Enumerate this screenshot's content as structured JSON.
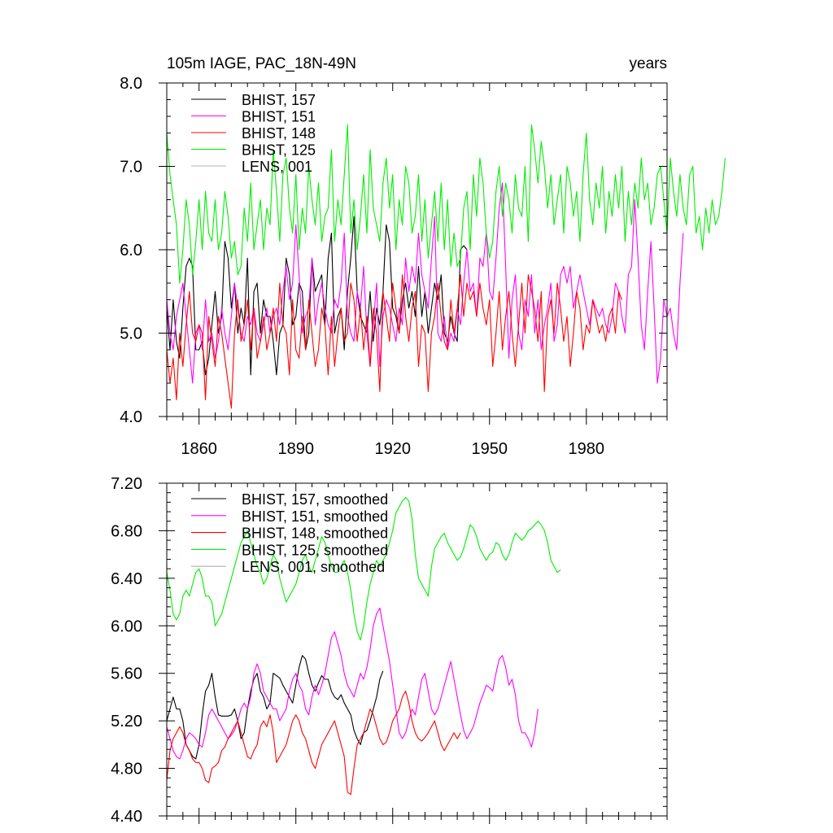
{
  "chart_data": [
    {
      "type": "line",
      "title_left": "105m IAGE, PAC_18N-49N",
      "title_right": "years",
      "xlim": [
        1850,
        2005
      ],
      "ylim": [
        4.0,
        8.0
      ],
      "xticks": [
        1860,
        1890,
        1920,
        1950,
        1980
      ],
      "xtick_labels": [
        "1860",
        "1890",
        "1920",
        "1950",
        "1980"
      ],
      "yticks": [
        4.0,
        5.0,
        6.0,
        7.0,
        8.0
      ],
      "ytick_labels": [
        "4.0",
        "5.0",
        "6.0",
        "7.0",
        "8.0"
      ],
      "legend_position": "top-left",
      "series": [
        {
          "name": "BHIST, 157",
          "color": "#000000",
          "x0": 1850,
          "values": [
            5.3,
            4.8,
            5.4,
            4.9,
            4.7,
            5.3,
            5.8,
            5.9,
            5.8,
            4.8,
            4.8,
            4.9,
            4.5,
            4.7,
            5.1,
            5.5,
            5.0,
            5.2,
            6.1,
            5.9,
            5.3,
            5.6,
            5.0,
            5.3,
            5.1,
            5.9,
            4.5,
            5.5,
            5.6,
            5.0,
            5.4,
            5.2,
            5.2,
            4.9,
            4.5,
            5.0,
            5.1,
            5.9,
            5.7,
            5.1,
            5.2,
            5.6,
            5.5,
            4.8,
            5.0,
            5.9,
            5.5,
            5.6,
            5.7,
            5.1,
            5.9,
            6.2,
            5.0,
            5.2,
            5.3,
            4.8,
            5.5,
            5.9,
            6.4,
            5.5,
            5.2,
            5.1,
            5.0,
            5.5,
            4.9,
            5.3,
            5.1,
            5.5,
            6.3,
            6.1,
            5.3,
            5.2,
            5.0,
            5.4,
            5.6,
            5.3,
            5.5,
            5.2,
            5.8,
            5.2,
            5.5,
            5.0,
            5.3,
            5.6,
            5.4,
            5.7,
            5.0,
            4.9,
            5.2,
            5.0,
            4.9,
            6.0,
            6.05,
            6.0
          ]
        },
        {
          "name": "BHIST, 151",
          "color": "#ff00ff",
          "x0": 1850,
          "values": [
            5.4,
            5.0,
            4.8,
            5.2,
            5.4,
            5.6,
            5.2,
            4.8,
            4.4,
            5.0,
            5.1,
            4.8,
            5.4,
            4.9,
            5.0,
            4.7,
            4.9,
            5.3,
            5.0,
            4.8,
            5.2,
            5.6,
            5.3,
            5.0,
            4.9,
            5.2,
            5.1,
            5.3,
            5.0,
            4.9,
            5.1,
            5.3,
            5.0,
            5.2,
            5.3,
            5.1,
            5.5,
            5.8,
            5.4,
            5.6,
            6.3,
            5.7,
            5.0,
            5.2,
            5.3,
            5.9,
            5.1,
            5.4,
            5.6,
            5.3,
            5.1,
            5.0,
            5.4,
            5.3,
            5.6,
            6.2,
            5.2,
            5.0,
            4.9,
            5.5,
            5.3,
            5.8,
            5.0,
            4.6,
            5.1,
            5.6,
            4.6,
            5.2,
            5.4,
            5.3,
            5.1,
            4.9,
            5.3,
            5.1,
            5.9,
            5.5,
            5.8,
            5.6,
            6.2,
            5.7,
            5.5,
            5.3,
            5.9,
            6.4,
            5.0,
            4.9,
            5.2,
            4.8,
            5.0,
            4.9,
            5.3,
            5.1,
            5.6,
            6.0,
            5.5,
            5.6,
            5.2,
            5.9,
            5.8,
            6.2,
            5.5,
            5.4,
            5.9,
            6.5,
            6.8,
            5.8,
            4.7,
            5.4,
            5.7,
            5.0,
            4.8,
            5.4,
            5.2,
            5.7,
            5.0,
            5.4,
            4.8,
            5.1,
            5.3,
            5.6,
            4.9,
            5.1,
            5.7,
            5.8,
            5.6,
            5.8,
            5.3,
            5.5,
            5.7,
            5.5,
            5.3,
            5.1,
            5.4,
            5.3,
            5.2,
            5.3,
            5.1,
            5.0,
            5.2,
            5.6,
            5.5,
            5.2,
            5.0,
            5.7,
            5.8,
            6.6,
            5.9,
            5.1,
            4.8,
            5.5,
            6.1,
            5.3,
            4.4,
            4.7,
            5.4,
            5.2,
            5.3,
            5.0,
            4.8,
            5.6,
            6.2
          ]
        },
        {
          "name": "BHIST, 148",
          "color": "#ff0000",
          "x0": 1850,
          "values": [
            4.8,
            4.4,
            4.7,
            4.2,
            5.0,
            4.6,
            5.1,
            5.5,
            5.0,
            4.9,
            5.1,
            5.0,
            4.2,
            5.2,
            4.9,
            4.6,
            5.2,
            5.0,
            4.7,
            4.4,
            4.1,
            5.0,
            5.4,
            4.9,
            5.1,
            5.4,
            4.8,
            5.3,
            4.7,
            4.9,
            5.2,
            4.8,
            5.0,
            5.3,
            4.9,
            5.6,
            5.1,
            5.0,
            4.5,
            5.4,
            4.8,
            4.7,
            5.2,
            4.8,
            5.4,
            5.0,
            4.6,
            4.8,
            5.3,
            5.1,
            4.5,
            5.2,
            4.6,
            5.0,
            5.3,
            4.9,
            5.0,
            5.6,
            5.4,
            4.9,
            5.3,
            4.8,
            5.2,
            4.6,
            5.3,
            5.0,
            4.3,
            5.5,
            5.2,
            4.9,
            5.6,
            5.3,
            5.0,
            5.7,
            5.2,
            4.9,
            5.3,
            5.5,
            4.6,
            5.1,
            5.0,
            4.3,
            5.0,
            5.2,
            5.6,
            5.2,
            4.9,
            4.8,
            5.4,
            5.0,
            5.3,
            5.7,
            5.2,
            5.6,
            5.4,
            5.5,
            5.2,
            5.6,
            5.3,
            5.1,
            5.4,
            4.6,
            5.0,
            5.5,
            4.8,
            5.2,
            5.5,
            5.0,
            4.6,
            5.1,
            5.6,
            5.0,
            5.7,
            5.5,
            5.3,
            4.9,
            5.5,
            4.3,
            5.2,
            5.4,
            5.0,
            5.6,
            5.3,
            4.9,
            5.2,
            4.6,
            5.0,
            5.5,
            5.3,
            4.8,
            5.1,
            5.0,
            5.4,
            5.2,
            5.0,
            5.1,
            4.9,
            5.2,
            5.3,
            5.0,
            5.5,
            5.4
          ]
        },
        {
          "name": "BHIST, 125",
          "color": "#00ee00",
          "x0": 1850,
          "values": [
            7.4,
            6.9,
            6.6,
            6.3,
            5.6,
            6.0,
            6.6,
            6.3,
            5.7,
            6.1,
            6.6,
            6.0,
            6.7,
            6.2,
            6.1,
            6.6,
            6.0,
            6.2,
            6.7,
            6.4,
            5.9,
            6.1,
            5.7,
            5.8,
            6.5,
            6.1,
            6.8,
            6.0,
            6.3,
            6.6,
            6.0,
            6.5,
            6.3,
            7.2,
            6.7,
            6.1,
            6.9,
            7.1,
            6.5,
            6.2,
            6.9,
            6.0,
            6.5,
            6.2,
            7.0,
            6.6,
            6.3,
            6.8,
            6.1,
            6.4,
            6.5,
            7.2,
            6.1,
            6.6,
            6.3,
            6.9,
            7.5,
            6.2,
            6.6,
            6.0,
            6.4,
            6.9,
            6.2,
            7.2,
            6.5,
            6.3,
            6.1,
            6.8,
            7.1,
            6.5,
            6.9,
            6.0,
            6.6,
            6.3,
            7.0,
            6.8,
            6.2,
            6.4,
            6.9,
            6.1,
            6.6,
            5.9,
            6.3,
            6.7,
            6.1,
            6.8,
            6.0,
            6.6,
            5.8,
            6.2,
            5.8,
            5.9,
            6.5,
            6.7,
            6.0,
            6.9,
            6.4,
            7.1,
            6.8,
            6.2,
            5.9,
            6.1,
            6.7,
            7.0,
            6.4,
            6.8,
            6.6,
            6.2,
            6.9,
            6.5,
            6.4,
            7.0,
            6.1,
            7.5,
            7.2,
            6.8,
            7.3,
            7.0,
            6.5,
            6.9,
            6.3,
            6.6,
            6.9,
            6.2,
            7.0,
            6.8,
            6.4,
            6.7,
            6.1,
            6.9,
            7.4,
            6.6,
            6.3,
            6.8,
            6.5,
            7.0,
            6.2,
            6.7,
            6.4,
            6.9,
            6.5,
            7.0,
            6.1,
            6.7,
            6.3,
            6.8,
            6.5,
            7.1,
            6.6,
            6.8,
            6.3,
            6.5,
            6.9,
            7.0,
            6.6,
            6.2,
            7.1,
            6.7,
            6.4,
            6.9,
            6.5,
            6.3,
            6.9,
            7.0,
            6.2,
            6.4,
            6.0,
            6.5,
            6.2,
            6.6,
            6.3,
            6.4,
            6.7,
            7.1
          ]
        },
        {
          "name": "LENS, 001",
          "color": "#b0b0b0",
          "x0": 1850,
          "values": []
        }
      ]
    },
    {
      "type": "line",
      "xlim": [
        1850,
        2005
      ],
      "ylim": [
        4.4,
        7.2
      ],
      "xticks": [
        1860,
        1890,
        1920,
        1950,
        1980
      ],
      "yticks": [
        4.4,
        4.8,
        5.2,
        5.6,
        6.0,
        6.4,
        6.8,
        7.2
      ],
      "ytick_labels": [
        "4.40",
        "4.80",
        "5.20",
        "5.60",
        "6.00",
        "6.40",
        "6.80",
        "7.20"
      ],
      "legend_position": "top-left",
      "series": [
        {
          "name": "BHIST, 157, smoothed",
          "color": "#000000",
          "x0": 1850,
          "values": [
            5.2,
            5.3,
            5.4,
            5.3,
            5.3,
            5.2,
            5.0,
            4.95,
            4.9,
            4.88,
            5.0,
            5.25,
            5.45,
            5.5,
            5.6,
            5.4,
            5.25,
            5.24,
            5.24,
            5.24,
            5.25,
            5.3,
            5.2,
            5.05,
            5.1,
            5.3,
            5.45,
            5.55,
            5.6,
            5.45,
            5.4,
            5.3,
            5.35,
            5.6,
            5.58,
            5.56,
            5.5,
            5.45,
            5.4,
            5.35,
            5.5,
            5.65,
            5.75,
            5.72,
            5.6,
            5.5,
            5.45,
            5.52,
            5.58,
            5.55,
            5.55,
            5.45,
            5.4,
            5.38,
            5.42,
            5.35,
            5.3,
            5.25,
            5.12,
            5.05,
            5.0,
            5.1,
            5.12,
            5.2,
            5.3,
            5.4,
            5.55,
            5.62
          ]
        },
        {
          "name": "BHIST, 151, smoothed",
          "color": "#ff00ff",
          "x0": 1850,
          "values": [
            5.15,
            5.05,
            4.95,
            4.9,
            4.88,
            4.95,
            5.05,
            5.1,
            5.08,
            5.05,
            5.0,
            4.98,
            5.1,
            5.25,
            5.3,
            5.25,
            5.2,
            5.15,
            5.1,
            5.05,
            5.08,
            5.12,
            5.2,
            5.3,
            5.35,
            5.3,
            5.4,
            5.6,
            5.68,
            5.6,
            5.45,
            5.4,
            5.35,
            5.3,
            5.3,
            5.2,
            5.25,
            5.3,
            5.45,
            5.55,
            5.6,
            5.5,
            5.45,
            5.3,
            5.25,
            5.4,
            5.5,
            5.42,
            5.5,
            5.6,
            5.75,
            5.9,
            5.95,
            5.85,
            5.75,
            5.6,
            5.5,
            5.45,
            5.4,
            5.5,
            5.6,
            5.55,
            5.65,
            5.8,
            6.0,
            6.1,
            6.15,
            6.0,
            5.85,
            5.7,
            5.5,
            5.3,
            5.1,
            5.05,
            5.1,
            5.2,
            5.3,
            5.25,
            5.4,
            5.55,
            5.6,
            5.45,
            5.3,
            5.25,
            5.3,
            5.4,
            5.5,
            5.6,
            5.7,
            5.55,
            5.4,
            5.25,
            5.12,
            5.05,
            5.1,
            5.15,
            5.25,
            5.35,
            5.42,
            5.5,
            5.48,
            5.45,
            5.6,
            5.72,
            5.75,
            5.65,
            5.5,
            5.55,
            5.42,
            5.2,
            5.1,
            5.1,
            5.05,
            4.98,
            5.1,
            5.3
          ]
        },
        {
          "name": "BHIST, 148, smoothed",
          "color": "#ff0000",
          "x0": 1850,
          "values": [
            4.7,
            4.95,
            5.05,
            5.1,
            5.15,
            5.1,
            5.0,
            4.95,
            4.88,
            4.85,
            4.85,
            4.8,
            4.7,
            4.68,
            4.8,
            4.82,
            4.85,
            4.95,
            4.98,
            5.05,
            5.1,
            5.15,
            5.2,
            5.1,
            5.0,
            4.9,
            4.88,
            4.95,
            5.0,
            5.15,
            5.2,
            5.15,
            5.25,
            5.1,
            4.85,
            4.9,
            4.95,
            5.0,
            5.1,
            5.2,
            5.25,
            5.2,
            5.1,
            5.05,
            4.95,
            4.85,
            4.8,
            4.9,
            5.0,
            5.05,
            5.1,
            5.15,
            5.2,
            5.1,
            5.0,
            4.9,
            4.6,
            4.58,
            4.8,
            5.0,
            5.05,
            5.1,
            5.2,
            5.3,
            5.25,
            5.15,
            5.05,
            5.0,
            5.02,
            5.1,
            5.2,
            5.25,
            5.3,
            5.4,
            5.45,
            5.35,
            5.2,
            5.1,
            5.05,
            5.03,
            5.06,
            5.1,
            5.15,
            5.2,
            5.1,
            5.0,
            4.95,
            5.0,
            5.05,
            5.1,
            5.05,
            5.1
          ]
        },
        {
          "name": "BHIST, 125, smoothed",
          "color": "#00ee00",
          "x0": 1850,
          "values": [
            6.45,
            6.3,
            6.1,
            6.05,
            6.1,
            6.25,
            6.3,
            6.25,
            6.35,
            6.45,
            6.48,
            6.4,
            6.25,
            6.25,
            6.2,
            6.0,
            6.05,
            6.1,
            6.2,
            6.3,
            6.4,
            6.5,
            6.6,
            6.7,
            6.75,
            6.8,
            6.7,
            6.6,
            6.5,
            6.45,
            6.35,
            6.4,
            6.5,
            6.6,
            6.55,
            6.4,
            6.3,
            6.2,
            6.25,
            6.3,
            6.35,
            6.45,
            6.55,
            6.6,
            6.5,
            6.45,
            6.55,
            6.65,
            6.75,
            6.7,
            6.6,
            6.5,
            6.45,
            6.45,
            6.5,
            6.55,
            6.45,
            6.3,
            6.1,
            5.95,
            5.88,
            6.0,
            6.2,
            6.35,
            6.45,
            6.55,
            6.5,
            6.55,
            6.6,
            6.7,
            6.8,
            6.95,
            7.0,
            7.05,
            7.08,
            7.05,
            6.9,
            6.6,
            6.4,
            6.35,
            6.3,
            6.25,
            6.5,
            6.65,
            6.7,
            6.75,
            6.78,
            6.7,
            6.65,
            6.6,
            6.55,
            6.58,
            6.65,
            6.75,
            6.85,
            6.82,
            6.75,
            6.65,
            6.6,
            6.55,
            6.6,
            6.62,
            6.7,
            6.68,
            6.6,
            6.55,
            6.6,
            6.7,
            6.78,
            6.75,
            6.72,
            6.75,
            6.8,
            6.82,
            6.85,
            6.88,
            6.85,
            6.8,
            6.7,
            6.55,
            6.5,
            6.45,
            6.47
          ]
        },
        {
          "name": "LENS, 001, smoothed",
          "color": "#b0b0b0",
          "x0": 1850,
          "values": []
        }
      ]
    }
  ]
}
